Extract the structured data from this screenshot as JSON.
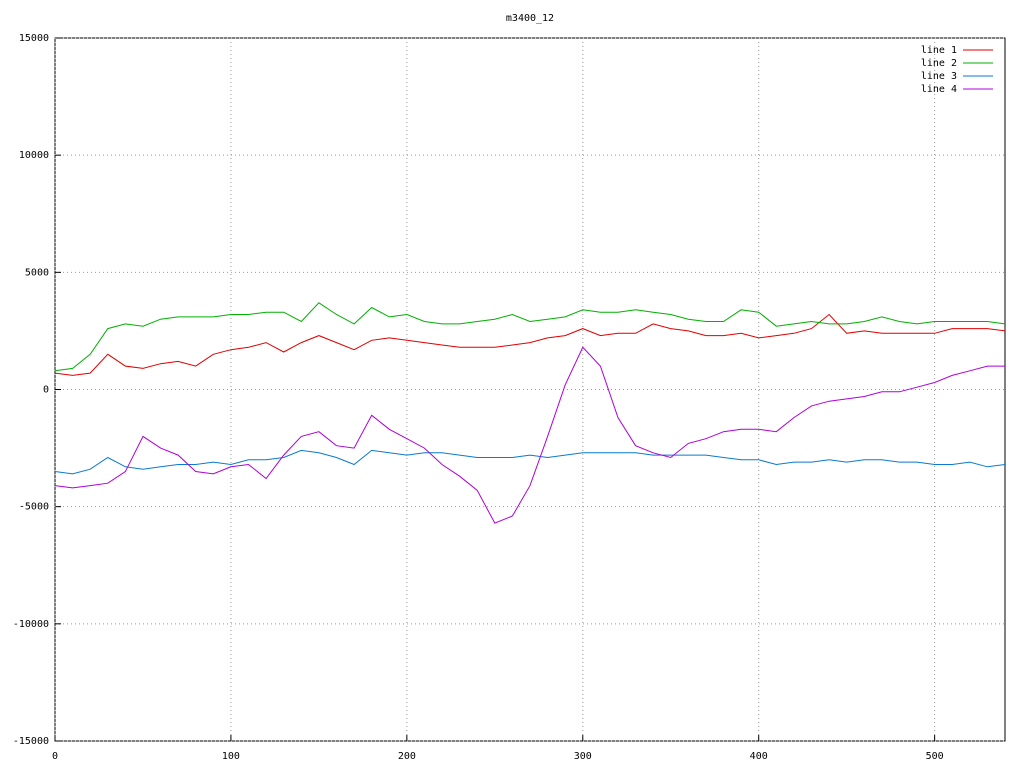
{
  "chart_data": {
    "type": "line",
    "title": "m3400_12",
    "x": [
      0,
      10,
      20,
      30,
      40,
      50,
      60,
      70,
      80,
      90,
      100,
      110,
      120,
      130,
      140,
      150,
      160,
      170,
      180,
      190,
      200,
      210,
      220,
      230,
      240,
      250,
      260,
      270,
      280,
      290,
      300,
      310,
      320,
      330,
      340,
      350,
      360,
      370,
      380,
      390,
      400,
      410,
      420,
      430,
      440,
      450,
      460,
      470,
      480,
      490,
      500,
      510,
      520,
      530,
      540
    ],
    "series": [
      {
        "name": "line 1",
        "color": "#e00000",
        "values": [
          700,
          600,
          700,
          1500,
          1000,
          900,
          1100,
          1200,
          1000,
          1500,
          1700,
          1800,
          2000,
          1600,
          2000,
          2300,
          2000,
          1700,
          2100,
          2200,
          2100,
          2000,
          1900,
          1800,
          1800,
          1800,
          1900,
          2000,
          2200,
          2300,
          2600,
          2300,
          2400,
          2400,
          2800,
          2600,
          2500,
          2300,
          2300,
          2400,
          2200,
          2300,
          2400,
          2600,
          3200,
          2400,
          2500,
          2400,
          2400,
          2400,
          2400,
          2600,
          2600,
          2600,
          2500
        ]
      },
      {
        "name": "line 2",
        "color": "#00b000",
        "values": [
          800,
          900,
          1500,
          2600,
          2800,
          2700,
          3000,
          3100,
          3100,
          3100,
          3200,
          3200,
          3300,
          3300,
          2900,
          3700,
          3200,
          2800,
          3500,
          3100,
          3200,
          2900,
          2800,
          2800,
          2900,
          3000,
          3200,
          2900,
          3000,
          3100,
          3400,
          3300,
          3300,
          3400,
          3300,
          3200,
          3000,
          2900,
          2900,
          3400,
          3300,
          2700,
          2800,
          2900,
          2800,
          2800,
          2900,
          3100,
          2900,
          2800,
          2900,
          2900,
          2900,
          2900,
          2800
        ]
      },
      {
        "name": "line 3",
        "color": "#0a7ad0",
        "values": [
          -3500,
          -3600,
          -3400,
          -2900,
          -3300,
          -3400,
          -3300,
          -3200,
          -3200,
          -3100,
          -3200,
          -3000,
          -3000,
          -2900,
          -2600,
          -2700,
          -2900,
          -3200,
          -2600,
          -2700,
          -2800,
          -2700,
          -2700,
          -2800,
          -2900,
          -2900,
          -2900,
          -2800,
          -2900,
          -2800,
          -2700,
          -2700,
          -2700,
          -2700,
          -2800,
          -2800,
          -2800,
          -2800,
          -2900,
          -3000,
          -3000,
          -3200,
          -3100,
          -3100,
          -3000,
          -3100,
          -3000,
          -3000,
          -3100,
          -3100,
          -3200,
          -3200,
          -3100,
          -3300,
          -3200
        ]
      },
      {
        "name": "line 4",
        "color": "#b000d8",
        "values": [
          -4100,
          -4200,
          -4100,
          -4000,
          -3500,
          -2000,
          -2500,
          -2800,
          -3500,
          -3600,
          -3300,
          -3200,
          -3800,
          -2800,
          -2000,
          -1800,
          -2400,
          -2500,
          -1100,
          -1700,
          -2100,
          -2500,
          -3200,
          -3700,
          -4300,
          -5700,
          -5400,
          -4100,
          -2000,
          200,
          1800,
          1000,
          -1200,
          -2400,
          -2700,
          -2900,
          -2300,
          -2100,
          -1800,
          -1700,
          -1700,
          -1800,
          -1200,
          -700,
          -500,
          -400,
          -300,
          -100,
          -100,
          100,
          300,
          600,
          800,
          1000,
          1000
        ]
      }
    ],
    "xlim": [
      0,
      540
    ],
    "xticks": [
      0,
      100,
      200,
      300,
      400,
      500
    ],
    "ylim": [
      -15000,
      15000
    ],
    "yticks": [
      -15000,
      -10000,
      -5000,
      0,
      5000,
      10000,
      15000
    ],
    "grid": true,
    "legend": "top-right"
  }
}
